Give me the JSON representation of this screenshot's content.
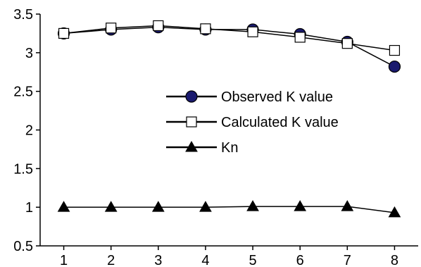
{
  "chart_data": {
    "type": "line",
    "title": "",
    "xlabel": "",
    "ylabel": "",
    "x": [
      1,
      2,
      3,
      4,
      5,
      6,
      7,
      8
    ],
    "xlim": [
      0.5,
      8.5
    ],
    "ylim": [
      0.5,
      3.5
    ],
    "yticks": [
      "0.5",
      "1",
      "1.5",
      "2",
      "2.5",
      "3",
      "3.5"
    ],
    "xticks": [
      "1",
      "2",
      "3",
      "4",
      "5",
      "6",
      "7",
      "8"
    ],
    "grid": false,
    "legend_position": "center-right",
    "series": [
      {
        "name": "Observed K value",
        "marker": "filled-circle",
        "marker_color": "#1a1a6e",
        "line_color": "#000000",
        "values": [
          3.25,
          3.3,
          3.33,
          3.3,
          3.3,
          3.24,
          3.14,
          2.82
        ]
      },
      {
        "name": "Calculated K value",
        "marker": "open-square",
        "marker_color": "#ffffff",
        "line_color": "#000000",
        "values": [
          3.25,
          3.32,
          3.35,
          3.31,
          3.27,
          3.2,
          3.12,
          3.03
        ]
      },
      {
        "name": "Kn",
        "marker": "filled-triangle",
        "marker_color": "#000000",
        "line_color": "#000000",
        "values": [
          1.0,
          1.0,
          1.0,
          1.0,
          1.01,
          1.01,
          1.01,
          0.93
        ]
      }
    ]
  }
}
